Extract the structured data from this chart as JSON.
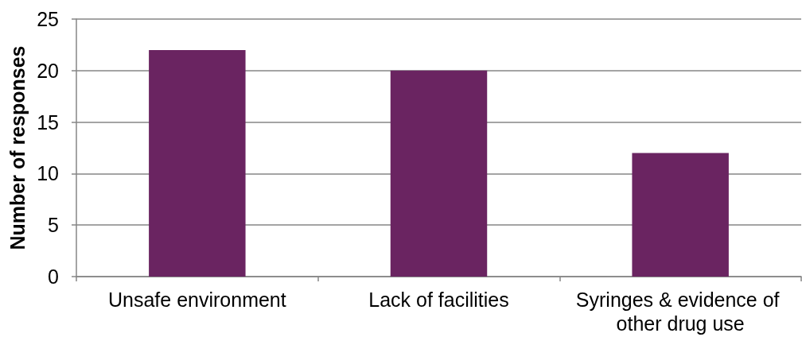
{
  "chart_data": {
    "type": "bar",
    "categories": [
      "Unsafe environment",
      "Lack of facilities",
      "Syringes & evidence of other drug use"
    ],
    "values": [
      22,
      20,
      12
    ],
    "color": "#6a2461",
    "ylabel": "Number of responses",
    "ylim": [
      0,
      25
    ],
    "yticks": [
      0,
      5,
      10,
      15,
      20,
      25
    ],
    "grid": "y"
  }
}
